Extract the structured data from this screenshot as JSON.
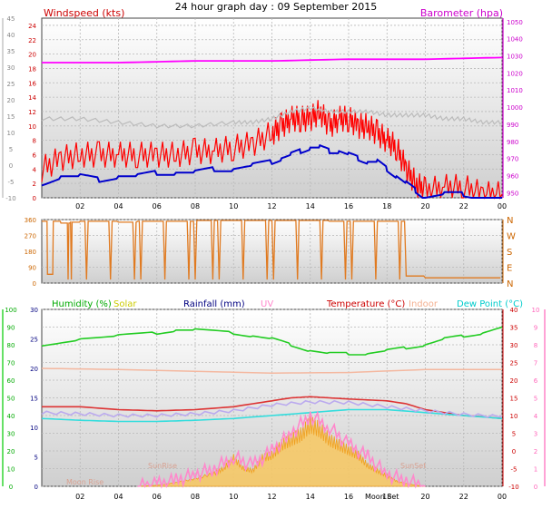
{
  "title": "24 hour graph day : 09 September 2015",
  "chart_data": [
    {
      "type": "line",
      "panel": "wind-baro",
      "legend": {
        "left": "Windspeed (kts)",
        "right": "Barometer (hpa)"
      },
      "x_ticks": [
        "02",
        "04",
        "06",
        "08",
        "10",
        "12",
        "14",
        "16",
        "18",
        "20",
        "22",
        "00"
      ],
      "left_axis_outer": {
        "ticks": [
          "45",
          "40",
          "35",
          "30",
          "25",
          "20",
          "15",
          "10",
          "5",
          "0",
          "-5",
          "-10"
        ],
        "range": [
          -10,
          45
        ]
      },
      "left_axis_inner": {
        "ticks": [
          "24",
          "22",
          "20",
          "18",
          "16",
          "14",
          "12",
          "10",
          "8",
          "6",
          "4",
          "2",
          "0"
        ],
        "range": [
          0,
          25
        ]
      },
      "right_axis": {
        "ticks": [
          "1050",
          "1040",
          "1030",
          "1020",
          "1010",
          "1000",
          "990",
          "980",
          "970",
          "960",
          "950"
        ],
        "range": [
          947,
          1052
        ]
      },
      "series": [
        {
          "name": "Windspeed",
          "axis": "left",
          "color": "#ff0000",
          "x": [
            0,
            1,
            2,
            3,
            4,
            5,
            6,
            7,
            8,
            9,
            10,
            11,
            12,
            12.5,
            13,
            13.5,
            14,
            14.5,
            15,
            15.5,
            16,
            16.5,
            17,
            17.5,
            18,
            18.5,
            19,
            19.5,
            20,
            21,
            22,
            23,
            24
          ],
          "y": [
            4,
            5.5,
            6,
            6,
            6,
            6,
            6,
            6,
            6.5,
            6.5,
            7,
            7.5,
            9,
            10,
            11,
            11,
            11,
            12,
            10,
            11,
            11,
            10,
            10,
            9,
            8,
            7,
            4,
            2,
            1,
            1.5,
            1.5,
            0.5,
            0.5
          ]
        },
        {
          "name": "Wind average",
          "axis": "left",
          "color": "#0000cc",
          "x": [
            0,
            1,
            2,
            3,
            4,
            5,
            6,
            7,
            8,
            9,
            10,
            11,
            12,
            12.5,
            13,
            13.5,
            14,
            14.5,
            15,
            15.5,
            16,
            16.5,
            17,
            17.5,
            18,
            18.5,
            19,
            19.5,
            20,
            21,
            22,
            23,
            24
          ],
          "y": [
            2,
            3,
            3,
            2.5,
            3,
            3,
            3.5,
            3.5,
            3.5,
            4,
            4,
            4.5,
            5,
            5.5,
            6,
            6.5,
            7,
            7,
            6.5,
            6.5,
            6,
            5.5,
            5,
            5,
            4,
            3,
            2,
            1,
            0,
            0.5,
            0.5,
            0,
            0
          ]
        },
        {
          "name": "Gust trace",
          "axis": "left",
          "color": "#bbbbbb",
          "x": [
            0,
            2,
            4,
            6,
            8,
            10,
            11,
            12,
            13,
            14,
            15,
            16,
            17,
            18,
            19,
            20,
            21,
            22,
            23,
            24
          ],
          "y": [
            11,
            11,
            10.5,
            10,
            10,
            10.5,
            10.5,
            11,
            12,
            12.5,
            12,
            12,
            12,
            11.5,
            11.5,
            11.5,
            11,
            11,
            10.5,
            10.5
          ]
        },
        {
          "name": "Barometer",
          "axis": "right",
          "color": "#ff00ff",
          "x": [
            0,
            4,
            8,
            12,
            16,
            20,
            24
          ],
          "y": [
            1026,
            1026,
            1027,
            1027,
            1028,
            1028,
            1029
          ]
        }
      ]
    },
    {
      "type": "line",
      "panel": "wind-direction",
      "y_ticks": [
        "360",
        "270",
        "180",
        "90",
        "0"
      ],
      "compass": [
        "N",
        "W",
        "S",
        "E",
        "N"
      ],
      "range": [
        0,
        360
      ],
      "series": [
        {
          "name": "Wind direction",
          "color": "#e07a20",
          "x": [
            0,
            0.3,
            0.6,
            1,
            1.5,
            2,
            3,
            4,
            5,
            6,
            7,
            8,
            9,
            10,
            11,
            12,
            13,
            14,
            15,
            16,
            17,
            18,
            19,
            20,
            21,
            22,
            23,
            24
          ],
          "y": [
            350,
            50,
            350,
            340,
            345,
            350,
            350,
            345,
            350,
            350,
            350,
            355,
            355,
            355,
            355,
            355,
            355,
            355,
            350,
            350,
            350,
            350,
            40,
            30,
            30,
            30,
            30,
            30
          ]
        }
      ]
    },
    {
      "type": "line",
      "panel": "temperature-humidity",
      "legend": [
        "Humidity (%)",
        "Solar",
        "Rainfall (mm)",
        "UV",
        "Temperature (°C)",
        "Indoor",
        "Dew Point (°C)"
      ],
      "legend_colors": [
        "#00aa00",
        "#cccc00",
        "#000080",
        "#ff88cc",
        "#cc0000",
        "#f4b090",
        "#00cccc"
      ],
      "x_ticks": [
        "02",
        "04",
        "06",
        "08",
        "10",
        "12",
        "14",
        "16",
        "18",
        "20",
        "22",
        "00"
      ],
      "left_axis_outer": {
        "ticks": [
          "100",
          "90",
          "80",
          "70",
          "60",
          "50",
          "40",
          "30",
          "20",
          "10",
          "0"
        ],
        "range": [
          0,
          100
        ]
      },
      "left_axis_inner": {
        "ticks": [
          "30",
          "25",
          "20",
          "15",
          "10",
          "5",
          "0"
        ],
        "range": [
          0,
          30
        ]
      },
      "right_axis_temp": {
        "ticks": [
          "40",
          "35",
          "30",
          "25",
          "20",
          "15",
          "10",
          "5",
          "0",
          "-5",
          "-10"
        ],
        "range": [
          -10,
          40
        ]
      },
      "right_axis_uv": {
        "ticks": [
          "10",
          "9",
          "8",
          "7",
          "6",
          "5",
          "4",
          "3",
          "2",
          "1",
          "0"
        ],
        "range": [
          0,
          10
        ]
      },
      "annotations": [
        "Moon Rise",
        "SunRise",
        "SunSet",
        "Moon Set"
      ],
      "series": [
        {
          "name": "Humidity",
          "axis": "left_inner",
          "color": "#22cc22",
          "x": [
            0,
            2,
            4,
            6,
            7,
            8,
            10,
            11,
            12,
            13,
            14,
            15,
            16,
            17,
            18,
            19,
            20,
            21,
            22,
            23,
            24
          ],
          "y": [
            24,
            25,
            25.5,
            26,
            26.5,
            26.5,
            26,
            25.5,
            25,
            24,
            23,
            22.5,
            22.5,
            22.5,
            23,
            23.5,
            24,
            25,
            25.5,
            26,
            27
          ]
        },
        {
          "name": "Indoor",
          "axis": "left_inner",
          "color": "#f4b8a0",
          "x": [
            0,
            4,
            8,
            12,
            16,
            20,
            24
          ],
          "y": [
            20,
            19.8,
            19.5,
            19.2,
            19.3,
            19.8,
            19.8
          ]
        },
        {
          "name": "Temperature",
          "axis": "left_inner",
          "color": "#dd3333",
          "x": [
            0,
            2,
            4,
            6,
            8,
            10,
            12,
            13,
            14,
            15,
            16,
            18,
            19,
            20,
            22,
            23,
            24
          ],
          "y": [
            13.5,
            13.5,
            13,
            12.8,
            13,
            13.5,
            14.5,
            15,
            15.2,
            15,
            14.8,
            14.5,
            14,
            13,
            12,
            11.8,
            11.5
          ]
        },
        {
          "name": "Dew Point",
          "axis": "left_inner",
          "color": "#33dddd",
          "x": [
            0,
            2,
            4,
            6,
            8,
            10,
            12,
            14,
            16,
            18,
            20,
            22,
            24
          ],
          "y": [
            11.5,
            11.2,
            11,
            11,
            11.2,
            11.5,
            12,
            12.5,
            13,
            13,
            12.5,
            12,
            11.5
          ]
        },
        {
          "name": "Wind chill",
          "axis": "left_inner",
          "color": "#bbaaee",
          "x": [
            0,
            2,
            4,
            6,
            8,
            10,
            12,
            14,
            16,
            18,
            20,
            22,
            24
          ],
          "y": [
            12.5,
            12.3,
            12,
            12,
            12.3,
            12.8,
            13.8,
            14.3,
            14.2,
            13.5,
            12.8,
            12.2,
            11.8
          ]
        },
        {
          "name": "Solar",
          "axis": "left_inner",
          "color": "#f0a020",
          "x": [
            5,
            6,
            7,
            8,
            9,
            9.5,
            10,
            10.5,
            11,
            11.5,
            12,
            12.5,
            13,
            13.5,
            14,
            14.5,
            15,
            15.5,
            16,
            16.5,
            17,
            17.5,
            18,
            18.5,
            19,
            20
          ],
          "y": [
            0,
            0.2,
            0.7,
            1.5,
            2.5,
            3.5,
            5.5,
            3.5,
            3,
            5.5,
            6,
            8,
            9,
            10,
            12,
            11,
            9,
            8,
            7,
            6,
            4,
            3,
            2,
            1,
            0.5,
            0
          ]
        },
        {
          "name": "UV",
          "axis": "left_inner",
          "color": "#ff88cc",
          "x": [
            5,
            6,
            7,
            8,
            9,
            10,
            11,
            12,
            13,
            14,
            15,
            16,
            17,
            18,
            19,
            20
          ],
          "y": [
            0,
            0.3,
            1,
            2,
            3,
            5,
            3.5,
            6,
            9,
            12,
            10,
            7,
            5,
            2,
            1,
            0
          ]
        }
      ]
    }
  ]
}
